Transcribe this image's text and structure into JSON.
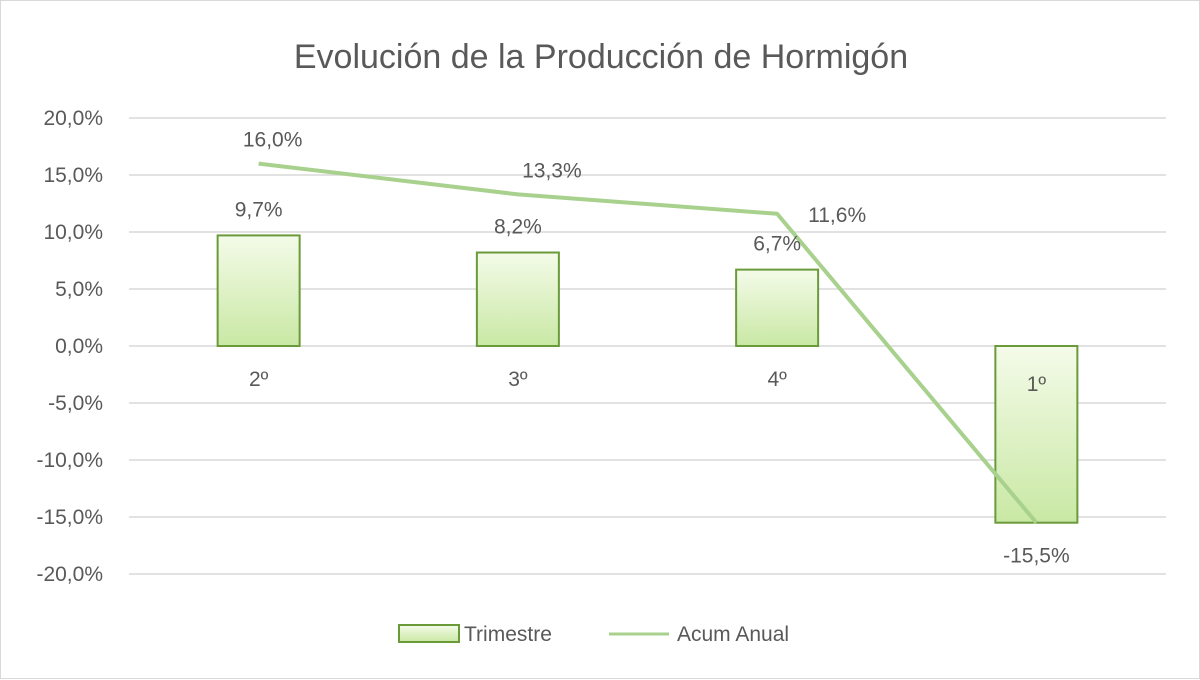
{
  "chart_data": {
    "type": "bar",
    "title": "Evolución de la Producción de Hormigón",
    "categories": [
      "2º",
      "3º",
      "4º",
      "1º"
    ],
    "series": [
      {
        "name": "Trimestre",
        "type": "bar",
        "values": [
          9.7,
          8.2,
          6.7,
          -15.5
        ],
        "labels": [
          "9,7%",
          "8,2%",
          "6,7%",
          "-15,5%"
        ]
      },
      {
        "name": "Acum Anual",
        "type": "line",
        "values": [
          16.0,
          13.3,
          11.6,
          -15.5
        ],
        "labels": [
          "16,0%",
          "13,3%",
          "11,6%",
          ""
        ]
      }
    ],
    "ylim": [
      -20,
      20
    ],
    "yticks": [
      "20,0%",
      "15,0%",
      "10,0%",
      "5,0%",
      "0,0%",
      "-5,0%",
      "-10,0%",
      "-15,0%",
      "-20,0%"
    ],
    "ytick_values": [
      20,
      15,
      10,
      5,
      0,
      -5,
      -10,
      -15,
      -20
    ],
    "grid": true,
    "legend_position": "bottom",
    "colors": {
      "bar_fill_top": "#f4fbe9",
      "bar_fill_bottom": "#c9e8a4",
      "bar_stroke": "#6a9a3a",
      "line": "#a9d18e",
      "grid": "#d9d9d9",
      "text": "#595959"
    }
  }
}
